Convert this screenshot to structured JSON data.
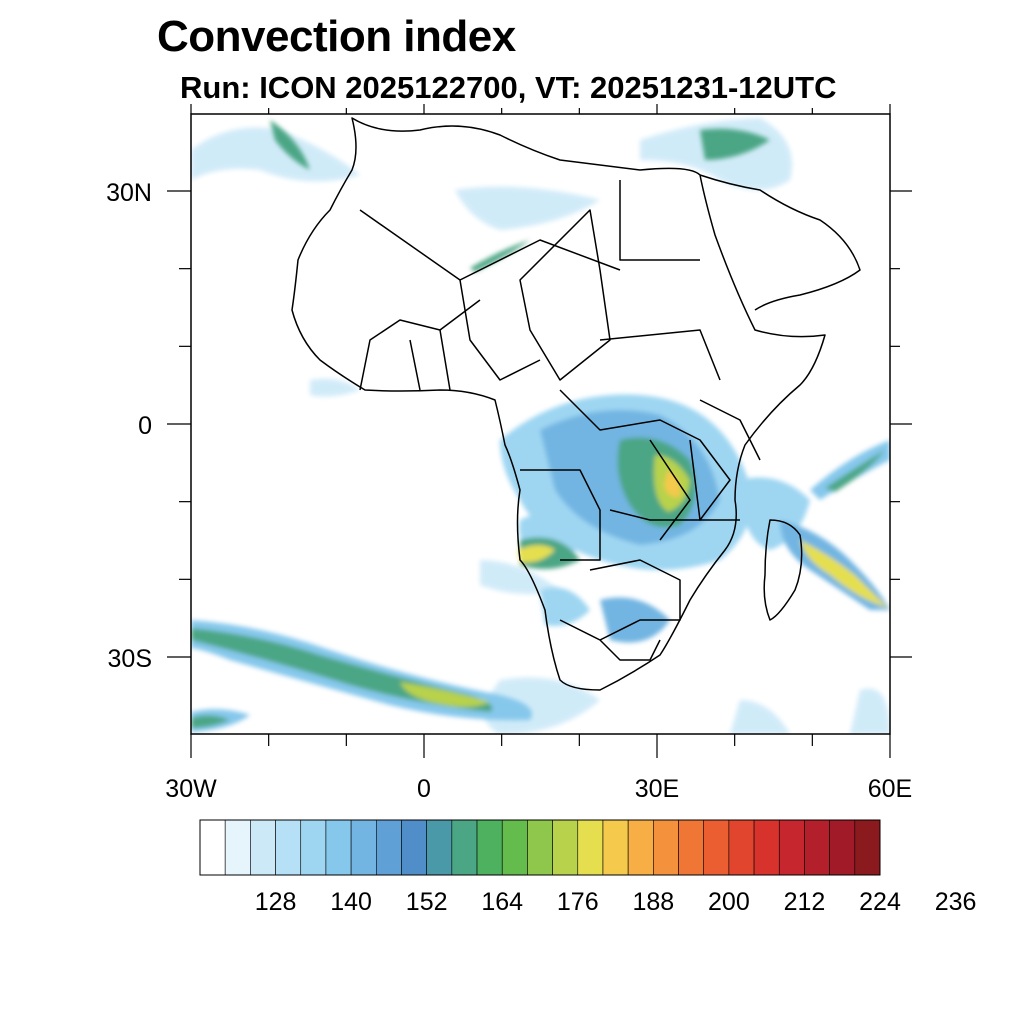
{
  "title": "Convection index",
  "subtitle": "Run: ICON 2025122700,  VT: 20251231-12UTC",
  "map": {
    "x_axis_labels": [
      "30W",
      "0",
      "30E",
      "60E"
    ],
    "y_axis_labels": [
      "30N",
      "0",
      "30S"
    ],
    "lon_range": [
      -30,
      60
    ],
    "lat_range": [
      -40,
      40
    ]
  },
  "colorbar": {
    "tick_labels": [
      "128",
      "140",
      "152",
      "164",
      "176",
      "188",
      "200",
      "212",
      "224",
      "236"
    ],
    "colors": [
      "#ffffff",
      "#e6f4fb",
      "#cce9f8",
      "#b5e0f5",
      "#9ed6f2",
      "#86c8ec",
      "#72b5e2",
      "#5fa0d6",
      "#4f8ec8",
      "#4a99a8",
      "#4ba685",
      "#4db15f",
      "#63bc4c",
      "#8ec74c",
      "#b8d24c",
      "#e5df4f",
      "#f5c94c",
      "#f7ae45",
      "#f4913c",
      "#f07635",
      "#eb5e31",
      "#e2452d",
      "#d8322d",
      "#c6262d",
      "#b31f2a",
      "#a01b27",
      "#8b1a1e"
    ]
  }
}
